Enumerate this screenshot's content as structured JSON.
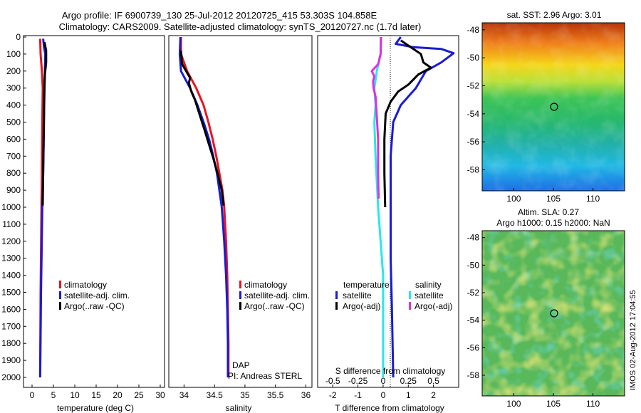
{
  "title": {
    "line1": "Argo profile: IF 6900739_130 25-Jul-2012 20120725_415 53.303S 104.858E",
    "line2": "Climatology: CARS2009. Satellite-adjusted climatology: synTS_20120727.nc (1.7d later)"
  },
  "side_label": "IMOS 02-Aug-2012 17:04:55",
  "dap_label": "DAP",
  "pi_label": "PI: Andreas STERL",
  "colors": {
    "red": "#e8141e",
    "blue": "#1a1ad6",
    "black": "#000000",
    "cyan": "#29e8e8",
    "magenta": "#e32ee3"
  },
  "chart_data": [
    {
      "type": "line",
      "xlabel": "temperature (deg C)",
      "ylabel": "",
      "xlim": [
        -2,
        31
      ],
      "ylim": [
        2050,
        0
      ],
      "xticks": [
        "0",
        "5",
        "10",
        "15",
        "20",
        "25",
        "30"
      ],
      "yticks": [
        "0",
        "100",
        "200",
        "300",
        "400",
        "500",
        "600",
        "700",
        "800",
        "900",
        "1000",
        "1100",
        "1200",
        "1300",
        "1400",
        "1500",
        "1600",
        "1700",
        "1800",
        "1900",
        "2000"
      ],
      "legend": [
        "climatology",
        "satellite-adj. clim.",
        "Argo(..raw -QC)"
      ],
      "series": [
        {
          "name": "climatology",
          "color": "red",
          "points": [
            [
              1.9,
              10
            ],
            [
              2.0,
              100
            ],
            [
              2.3,
              200
            ],
            [
              2.5,
              300
            ],
            [
              2.4,
              500
            ],
            [
              2.3,
              800
            ],
            [
              2.2,
              1000
            ],
            [
              2.0,
              1500
            ],
            [
              1.9,
              2000
            ]
          ]
        },
        {
          "name": "satellite-adj. clim.",
          "color": "blue",
          "points": [
            [
              2.6,
              10
            ],
            [
              2.8,
              60
            ],
            [
              3.1,
              100
            ],
            [
              3.0,
              200
            ],
            [
              2.9,
              300
            ],
            [
              2.8,
              500
            ],
            [
              2.6,
              800
            ],
            [
              2.4,
              1000
            ],
            [
              2.1,
              1500
            ],
            [
              1.9,
              2000
            ]
          ]
        },
        {
          "name": "Argo(..raw -QC)",
          "color": "black",
          "points": [
            [
              2.9,
              30
            ],
            [
              3.3,
              80
            ],
            [
              3.3,
              150
            ],
            [
              3.0,
              220
            ],
            [
              2.9,
              300
            ],
            [
              2.8,
              400
            ],
            [
              2.7,
              600
            ],
            [
              2.6,
              800
            ],
            [
              2.5,
              990
            ]
          ]
        }
      ]
    },
    {
      "type": "line",
      "xlabel": "salinity",
      "ylabel": "",
      "xlim": [
        33.75,
        36.1
      ],
      "ylim": [
        2050,
        0
      ],
      "xticks": [
        "34",
        "34.5",
        "35",
        "35.5",
        "36"
      ],
      "legend": [
        "climatology",
        "satellite-adj. clim.",
        "Argo(..raw -QC)"
      ],
      "series": [
        {
          "name": "climatology",
          "color": "red",
          "points": [
            [
              33.95,
              0
            ],
            [
              33.95,
              100
            ],
            [
              34.05,
              200
            ],
            [
              34.2,
              300
            ],
            [
              34.32,
              400
            ],
            [
              34.4,
              500
            ],
            [
              34.47,
              600
            ],
            [
              34.53,
              700
            ],
            [
              34.58,
              800
            ],
            [
              34.63,
              900
            ],
            [
              34.66,
              1000
            ],
            [
              34.69,
              1200
            ],
            [
              34.71,
              1400
            ],
            [
              34.72,
              1600
            ],
            [
              34.73,
              1800
            ],
            [
              34.73,
              2000
            ]
          ]
        },
        {
          "name": "satellite-adj. clim.",
          "color": "blue",
          "points": [
            [
              33.94,
              0
            ],
            [
              33.93,
              100
            ],
            [
              33.95,
              200
            ],
            [
              34.1,
              300
            ],
            [
              34.22,
              400
            ],
            [
              34.32,
              500
            ],
            [
              34.41,
              600
            ],
            [
              34.48,
              700
            ],
            [
              34.54,
              800
            ],
            [
              34.58,
              900
            ],
            [
              34.62,
              1000
            ],
            [
              34.66,
              1200
            ],
            [
              34.69,
              1400
            ],
            [
              34.71,
              1600
            ],
            [
              34.72,
              1800
            ],
            [
              34.72,
              2000
            ]
          ]
        },
        {
          "name": "Argo(..raw -QC)",
          "color": "black",
          "points": [
            [
              33.95,
              80
            ],
            [
              33.97,
              160
            ],
            [
              34.05,
              210
            ],
            [
              34.1,
              240
            ],
            [
              34.08,
              270
            ],
            [
              34.12,
              320
            ],
            [
              34.18,
              370
            ],
            [
              34.25,
              450
            ],
            [
              34.34,
              550
            ],
            [
              34.4,
              620
            ],
            [
              34.47,
              700
            ],
            [
              34.55,
              800
            ],
            [
              34.62,
              900
            ],
            [
              34.65,
              990
            ]
          ]
        }
      ]
    },
    {
      "type": "line",
      "xlabel": "T difference from climatology",
      "xlabel_top": "S difference from climatology",
      "xlim": [
        -2.6,
        3.0
      ],
      "ylim": [
        2050,
        0
      ],
      "xticks": [
        "-2",
        "-1",
        "0",
        "1",
        "2"
      ],
      "xticks_top": [
        "-0.5",
        "-0.25",
        "0",
        "0.25",
        "0.5"
      ],
      "legend_groups": [
        {
          "title": "temperature",
          "items": [
            "satellite",
            "Argo(-adj)"
          ]
        },
        {
          "title": "salinity",
          "items": [
            "satellite",
            "Argo(-adj)"
          ]
        }
      ],
      "series": [
        {
          "name": "temperature satellite",
          "color": "blue",
          "points": [
            [
              0.7,
              0
            ],
            [
              0.5,
              40
            ],
            [
              1.2,
              60
            ],
            [
              2.3,
              70
            ],
            [
              2.8,
              95
            ],
            [
              2.3,
              150
            ],
            [
              1.7,
              200
            ],
            [
              1.3,
              300
            ],
            [
              1.0,
              350
            ],
            [
              0.7,
              400
            ],
            [
              0.4,
              500
            ],
            [
              0.3,
              700
            ],
            [
              0.3,
              900
            ],
            [
              0.3,
              1300
            ],
            [
              0.35,
              1600
            ],
            [
              0.4,
              2000
            ]
          ]
        },
        {
          "name": "temperature Argo(-adj)",
          "color": "black",
          "points": [
            [
              0.7,
              20
            ],
            [
              1.0,
              50
            ],
            [
              1.2,
              70
            ],
            [
              1.5,
              100
            ],
            [
              1.6,
              150
            ],
            [
              1.9,
              180
            ],
            [
              1.4,
              220
            ],
            [
              1.0,
              280
            ],
            [
              0.6,
              320
            ],
            [
              0.3,
              380
            ],
            [
              0.1,
              450
            ],
            [
              0.05,
              600
            ],
            [
              0.05,
              800
            ],
            [
              0.08,
              1000
            ]
          ]
        },
        {
          "name": "salinity satellite",
          "color": "cyan",
          "points": [
            [
              -0.1,
              0
            ],
            [
              -0.1,
              100
            ],
            [
              -0.25,
              200
            ],
            [
              -0.35,
              300
            ],
            [
              -0.3,
              400
            ],
            [
              -0.35,
              500
            ],
            [
              -0.3,
              700
            ],
            [
              -0.2,
              1000
            ],
            [
              -0.1,
              1200
            ],
            [
              0.0,
              1400
            ],
            [
              0.0,
              1700
            ],
            [
              0.0,
              2000
            ]
          ]
        },
        {
          "name": "salinity Argo(-adj)",
          "color": "magenta",
          "points": [
            [
              -0.08,
              0
            ],
            [
              -0.1,
              100
            ],
            [
              -0.2,
              160
            ],
            [
              -0.45,
              200
            ],
            [
              -0.35,
              230
            ],
            [
              -0.4,
              260
            ],
            [
              -0.38,
              300
            ],
            [
              -0.3,
              350
            ],
            [
              -0.27,
              420
            ],
            [
              -0.2,
              600
            ],
            [
              -0.2,
              800
            ],
            [
              -0.18,
              950
            ]
          ]
        }
      ]
    },
    {
      "type": "heatmap",
      "title": "sat. SST: 2.96  Argo: 3.01",
      "xlim": [
        96,
        114
      ],
      "ylim": [
        -59.5,
        -47.5
      ],
      "xticks": [
        "100",
        "105",
        "110"
      ],
      "yticks": [
        "-48",
        "-50",
        "-52",
        "-54",
        "-56",
        "-58"
      ],
      "marker": {
        "lon": 104.858,
        "lat": -53.303
      }
    },
    {
      "type": "heatmap",
      "title_line1": "Altim. SLA: 0.27",
      "title_line2": "Argo h1000: 0.15 h2000: NaN",
      "xlim": [
        96,
        114
      ],
      "ylim": [
        -59.5,
        -47.5
      ],
      "xticks": [
        "100",
        "105",
        "110"
      ],
      "yticks": [
        "-48",
        "-50",
        "-52",
        "-54",
        "-56",
        "-58"
      ],
      "marker": {
        "lon": 104.858,
        "lat": -53.303
      }
    }
  ]
}
